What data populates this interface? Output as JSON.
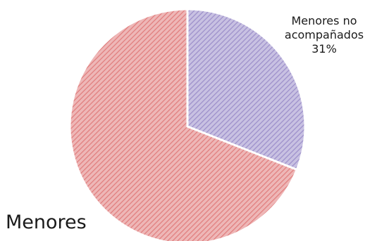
{
  "chart_data": {
    "type": "pie",
    "slices": [
      {
        "label": "Menores no acompañados",
        "label_lines": [
          "Menores no",
          "acompañados"
        ],
        "value": 31,
        "display": "31%",
        "color": "#9b8dc9",
        "hatch": "diagonal"
      },
      {
        "label": "Menores",
        "label_lines": [
          "Menores"
        ],
        "value": 69,
        "display": "",
        "color": "#e07b7b",
        "hatch": "diagonal"
      }
    ],
    "start_angle_deg": 0,
    "direction": "clockwise",
    "legend": "none",
    "title": ""
  }
}
